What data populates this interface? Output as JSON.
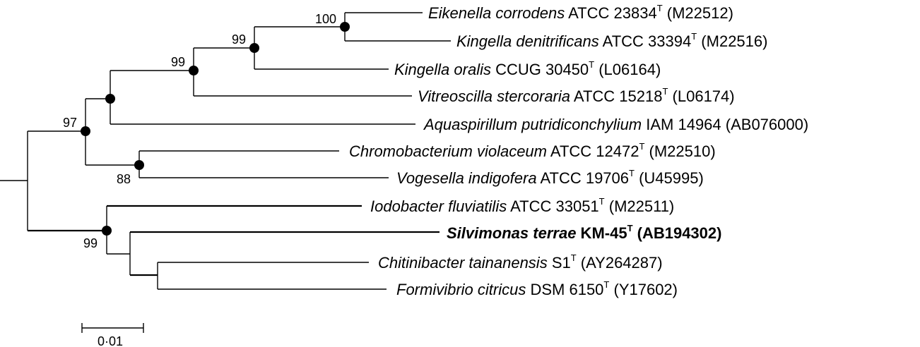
{
  "taxa": [
    {
      "genus_species": "Eikenella corrodens",
      "strain": " ATCC 23834",
      "type_mark": "T",
      "accession": " (M22512)",
      "bold": false
    },
    {
      "genus_species": "Kingella denitrificans",
      "strain": " ATCC 33394",
      "type_mark": "T",
      "accession": " (M22516)",
      "bold": false
    },
    {
      "genus_species": "Kingella oralis",
      "strain": " CCUG 30450",
      "type_mark": "T",
      "accession": " (L06164)",
      "bold": false
    },
    {
      "genus_species": "Vitreoscilla stercoraria",
      "strain": " ATCC 15218",
      "type_mark": "T",
      "accession": " (L06174)",
      "bold": false
    },
    {
      "genus_species": "Aquaspirillum putridiconchylium",
      "strain": " IAM 14964 (AB076000)",
      "type_mark": "",
      "accession": "",
      "bold": false
    },
    {
      "genus_species": "Chromobacterium violaceum",
      "strain": " ATCC 12472",
      "type_mark": "T",
      "accession": " (M22510)",
      "bold": false
    },
    {
      "genus_species": "Vogesella indigofera",
      "strain": " ATCC 19706",
      "type_mark": "T",
      "accession": " (U45995)",
      "bold": false
    },
    {
      "genus_species": "Iodobacter fluviatilis",
      "strain": " ATCC 33051",
      "type_mark": "T",
      "accession": " (M22511)",
      "bold": false
    },
    {
      "genus_species": "Silvimonas terrae",
      "strain": " KM-45",
      "type_mark": "T",
      "accession": " (AB194302)",
      "bold": true
    },
    {
      "genus_species": "Chitinibacter tainanensis",
      "strain": " S1",
      "type_mark": "T",
      "accession": " (AY264287)",
      "bold": false
    },
    {
      "genus_species": "Formivibrio citricus",
      "strain": " DSM 6150",
      "type_mark": "T",
      "accession": " (Y17602)",
      "bold": false
    }
  ],
  "bootstrap_values": [
    "100",
    "99",
    "99",
    "97",
    "88",
    "99"
  ],
  "scale_bar": {
    "label": "0·01",
    "length_substitutions": 0.01
  }
}
